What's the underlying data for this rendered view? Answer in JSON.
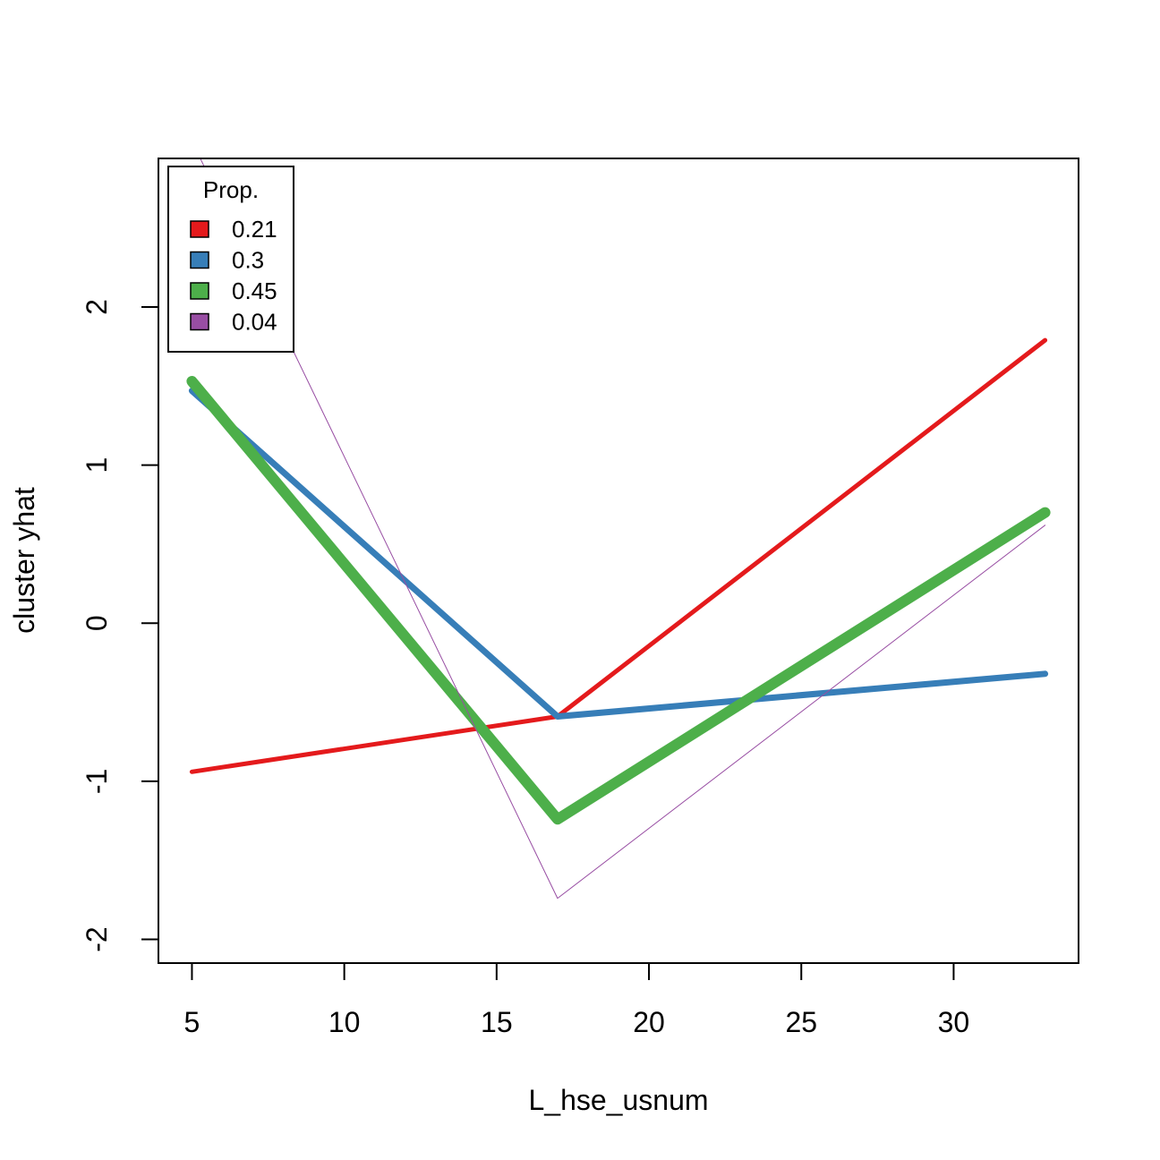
{
  "chart_data": {
    "type": "line",
    "xlabel": "L_hse_usnum",
    "ylabel": "cluster yhat",
    "xlim": [
      3.9,
      34.1
    ],
    "ylim": [
      -2.15,
      2.94
    ],
    "xticks": [
      5,
      10,
      15,
      20,
      25,
      30
    ],
    "yticks": [
      -2,
      -1,
      0,
      1,
      2
    ],
    "grid": false,
    "legend": {
      "title": "Prop.",
      "position": "top-left"
    },
    "x": [
      5,
      17,
      33
    ],
    "series": [
      {
        "name": "0.21",
        "values": [
          -0.94,
          -0.59,
          1.79
        ],
        "color": "#E41A1C",
        "width": 5
      },
      {
        "name": "0.3",
        "values": [
          1.47,
          -0.59,
          -0.32
        ],
        "color": "#377EB8",
        "width": 7
      },
      {
        "name": "0.45",
        "values": [
          1.53,
          -1.24,
          0.7
        ],
        "color": "#4DAF4A",
        "width": 12
      },
      {
        "name": "0.04",
        "values": [
          3.05,
          -1.74,
          0.62
        ],
        "color": "#984EA3",
        "width": 1
      }
    ]
  }
}
